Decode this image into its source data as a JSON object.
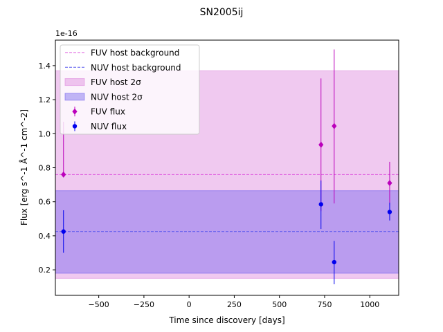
{
  "chart_data": {
    "type": "scatter",
    "title": "SN2005ij",
    "xlabel": "Time since discovery [days]",
    "ylabel": "Flux [erg s^-1 Å^-1 cm^-2]",
    "y_offset_text": "1e-16",
    "xlim": [
      -740,
      1160
    ],
    "ylim": [
      0.05,
      1.55
    ],
    "x_ticks": [
      -500,
      -250,
      0,
      250,
      500,
      750,
      1000
    ],
    "x_tick_labels": [
      "−500",
      "−250",
      "0",
      "250",
      "500",
      "750",
      "1000"
    ],
    "y_ticks": [
      0.2,
      0.4,
      0.6,
      0.8,
      1.0,
      1.2,
      1.4
    ],
    "y_tick_labels": [
      "0.2",
      "0.4",
      "0.6",
      "0.8",
      "1.0",
      "1.2",
      "1.4"
    ],
    "grid": false,
    "legend_position": "top-left",
    "bands": [
      {
        "name": "FUV host 2σ",
        "y_low": 0.15,
        "y_high": 1.37,
        "color": "#dd88dd",
        "alpha": 0.45
      },
      {
        "name": "NUV host 2σ",
        "y_low": 0.18,
        "y_high": 0.665,
        "color": "#7766ee",
        "alpha": 0.45
      }
    ],
    "hlines": [
      {
        "name": "FUV host background",
        "y": 0.76,
        "color": "#dd55dd"
      },
      {
        "name": "NUV host background",
        "y": 0.425,
        "color": "#5555ee"
      }
    ],
    "series": [
      {
        "name": "FUV flux",
        "marker": "diamond",
        "color": "#bb00bb",
        "x": [
          -695,
          730,
          803,
          1110
        ],
        "y": [
          0.76,
          0.935,
          1.045,
          0.71
        ],
        "y_err_low": [
          0.76,
          0.545,
          0.59,
          0.58
        ],
        "y_err_high": [
          1.07,
          1.325,
          1.495,
          0.835
        ]
      },
      {
        "name": "NUV flux",
        "marker": "circle",
        "color": "#0000ee",
        "x": [
          -695,
          730,
          803,
          1110
        ],
        "y": [
          0.425,
          0.585,
          0.245,
          0.54
        ],
        "y_err_low": [
          0.3,
          0.44,
          0.115,
          0.49
        ],
        "y_err_high": [
          0.55,
          0.725,
          0.37,
          0.595
        ]
      }
    ]
  }
}
